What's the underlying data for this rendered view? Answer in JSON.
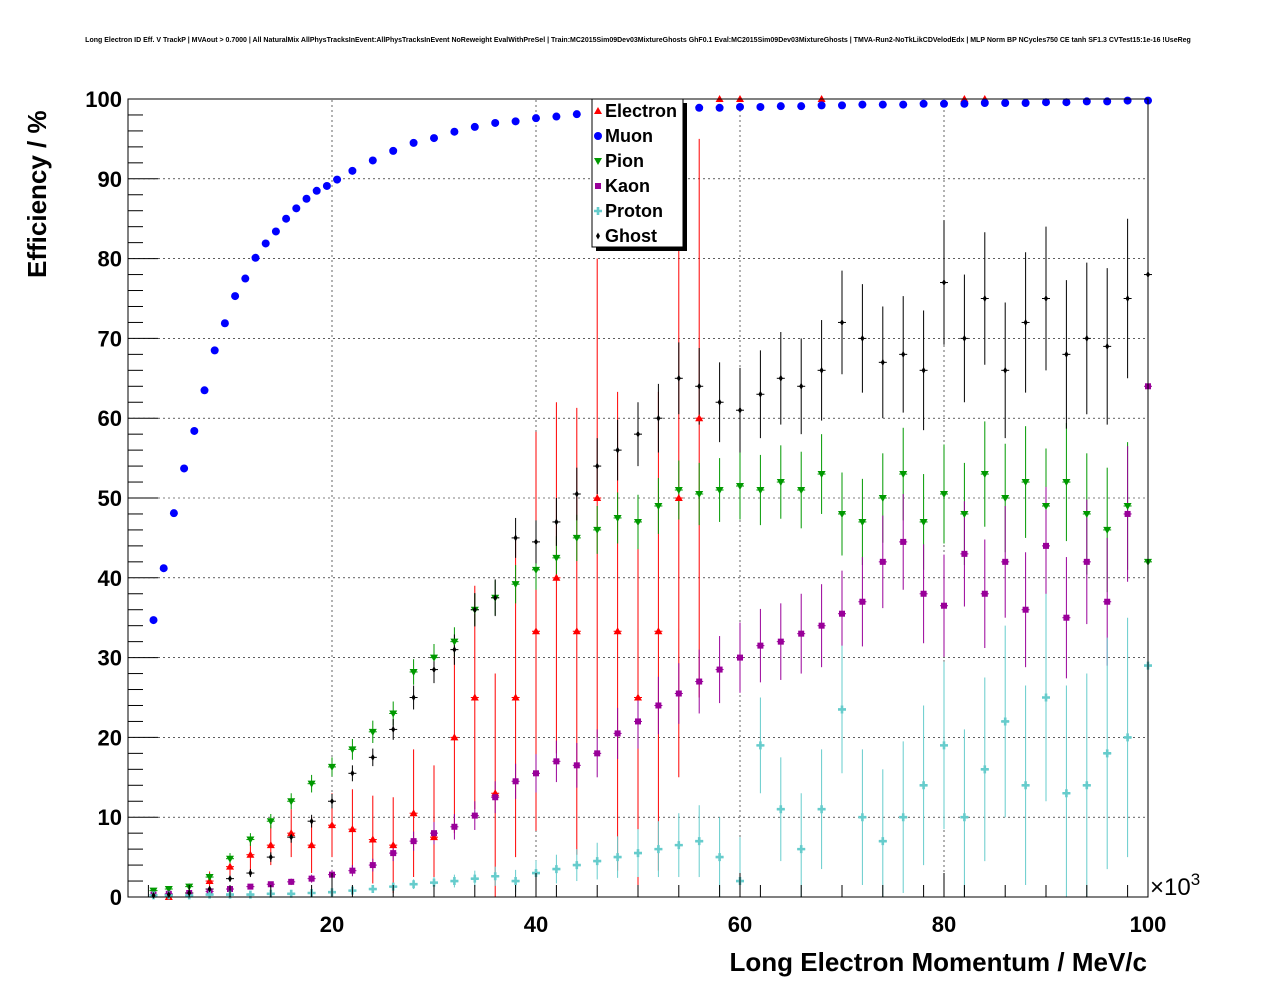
{
  "chart_data": {
    "type": "scatter",
    "title": "Long Electron ID Eff. V TrackP | MVAout > 0.7000 | All NaturalMix AllPhysTracksInEvent:AllPhysTracksInEvent NoReweight EvalWithPreSel | Train:MC2015Sim09Dev03MixtureGhosts GhF0.1 Eval:MC2015Sim09Dev03MixtureGhosts | TMVA-Run2-NoTkLikCDVelodEdx | MLP Norm BP NCycles750 CE tanh SF1.3 CVTest15:1e-16 !UseReg",
    "xlabel": "Long Electron Momentum / MeV/c",
    "ylabel": "Efficiency / %",
    "x_multiplier_label": "×10",
    "x_multiplier_exponent": "3",
    "xlim": [
      0,
      100
    ],
    "ylim": [
      0,
      100
    ],
    "x_ticks": [
      "20",
      "40",
      "60",
      "80",
      "100"
    ],
    "x_tick_values": [
      20,
      40,
      60,
      80,
      100
    ],
    "y_ticks": [
      "0",
      "10",
      "20",
      "30",
      "40",
      "50",
      "60",
      "70",
      "80",
      "90",
      "100"
    ],
    "y_tick_values": [
      0,
      10,
      20,
      30,
      40,
      50,
      60,
      70,
      80,
      90,
      100
    ],
    "grid": true,
    "legend_position": "top-center",
    "series": [
      {
        "name": "Electron",
        "color": "#ff0000",
        "marker": "triangle-up",
        "x": [
          4,
          6,
          8,
          10,
          12,
          14,
          16,
          18,
          20,
          22,
          24,
          26,
          28,
          30,
          32,
          34,
          36,
          38,
          40,
          42,
          44,
          46,
          48,
          50,
          52,
          54,
          56,
          58,
          60,
          68,
          82,
          84
        ],
        "y": [
          0,
          0.5,
          2.0,
          3.8,
          5.3,
          6.5,
          8.0,
          6.5,
          9.0,
          8.5,
          7.2,
          6.5,
          10.5,
          7.5,
          20.0,
          25.0,
          13.0,
          25.0,
          33.3,
          40.0,
          33.3,
          50.0,
          33.3,
          25.0,
          33.3,
          50.0,
          60.0,
          100.0,
          100.0,
          100.0,
          100.0,
          100.0
        ],
        "yerr": [
          0.5,
          0.8,
          1.2,
          1.5,
          2.0,
          2.5,
          3.0,
          3.5,
          4.0,
          5.0,
          5.5,
          6.0,
          8.0,
          9.0,
          12.0,
          14.0,
          15.0,
          20.0,
          25.0,
          22.0,
          28.0,
          30.0,
          30.0,
          25.0,
          30.0,
          35.0,
          35.0,
          0,
          0,
          0,
          0,
          0
        ]
      },
      {
        "name": "Muon",
        "color": "#0000ff",
        "marker": "circle",
        "x": [
          2.5,
          3.5,
          4.5,
          5.5,
          6.5,
          7.5,
          8.5,
          9.5,
          10.5,
          11.5,
          12.5,
          13.5,
          14.5,
          15.5,
          16.5,
          17.5,
          18.5,
          19.5,
          20.5,
          22,
          24,
          26,
          28,
          30,
          32,
          34,
          36,
          38,
          40,
          42,
          44,
          46,
          48,
          50,
          52,
          54,
          56,
          58,
          60,
          62,
          64,
          66,
          68,
          70,
          72,
          74,
          76,
          78,
          80,
          82,
          84,
          86,
          88,
          90,
          92,
          94,
          96,
          98,
          100
        ],
        "y": [
          34.7,
          41.2,
          48.1,
          53.7,
          58.4,
          63.5,
          68.5,
          71.9,
          75.3,
          77.5,
          80.1,
          81.9,
          83.4,
          85.0,
          86.3,
          87.5,
          88.5,
          89.1,
          89.9,
          91.0,
          92.3,
          93.5,
          94.5,
          95.1,
          95.9,
          96.5,
          97.0,
          97.2,
          97.6,
          97.8,
          98.1,
          98.3,
          98.4,
          98.5,
          98.7,
          98.8,
          98.9,
          98.9,
          99.0,
          99.0,
          99.1,
          99.1,
          99.2,
          99.2,
          99.3,
          99.3,
          99.3,
          99.4,
          99.4,
          99.4,
          99.5,
          99.5,
          99.5,
          99.6,
          99.6,
          99.7,
          99.7,
          99.8,
          99.8
        ],
        "yerr": []
      },
      {
        "name": "Pion",
        "color": "#009900",
        "marker": "triangle-down",
        "x": [
          2.5,
          4,
          6,
          8,
          10,
          12,
          14,
          16,
          18,
          20,
          22,
          24,
          26,
          28,
          30,
          32,
          34,
          36,
          38,
          40,
          42,
          44,
          46,
          48,
          50,
          52,
          54,
          56,
          58,
          60,
          62,
          64,
          66,
          68,
          70,
          72,
          74,
          76,
          78,
          80,
          82,
          84,
          86,
          88,
          90,
          92,
          94,
          96,
          98,
          100
        ],
        "y": [
          0.8,
          1.0,
          1.3,
          2.5,
          4.8,
          7.2,
          9.5,
          12.0,
          14.2,
          16.3,
          18.5,
          20.7,
          23.0,
          28.2,
          30.0,
          32.0,
          36.0,
          37.5,
          39.2,
          41.0,
          42.5,
          45.0,
          46.0,
          47.5,
          47.0,
          49.0,
          51.0,
          50.5,
          51.0,
          51.5,
          51.0,
          52.0,
          51.0,
          53.0,
          48.0,
          47.0,
          50.0,
          53.0,
          47.0,
          50.5,
          48.0,
          53.0,
          50.0,
          52.0,
          49.0,
          52.0,
          48.0,
          46.0,
          49.0,
          42.0
        ],
        "yerr": [
          0.3,
          0.3,
          0.4,
          0.5,
          0.7,
          0.8,
          0.9,
          1.0,
          1.1,
          1.2,
          1.3,
          1.4,
          1.5,
          1.6,
          1.7,
          1.8,
          2.0,
          2.2,
          2.4,
          2.5,
          2.7,
          2.9,
          3.0,
          3.2,
          3.4,
          3.5,
          3.7,
          3.9,
          4.0,
          4.2,
          4.4,
          4.6,
          4.8,
          5.0,
          5.2,
          5.4,
          5.6,
          5.8,
          6.0,
          6.2,
          6.4,
          6.6,
          6.8,
          7.0,
          7.2,
          7.4,
          7.6,
          7.8,
          8.0,
          8.5
        ]
      },
      {
        "name": "Kaon",
        "color": "#990099",
        "marker": "square",
        "x": [
          2.5,
          4,
          6,
          8,
          10,
          12,
          14,
          16,
          18,
          20,
          22,
          24,
          26,
          28,
          30,
          32,
          34,
          36,
          38,
          40,
          42,
          44,
          46,
          48,
          50,
          52,
          54,
          56,
          58,
          60,
          62,
          64,
          66,
          68,
          70,
          72,
          74,
          76,
          78,
          80,
          82,
          84,
          86,
          88,
          90,
          92,
          94,
          96,
          98,
          100
        ],
        "y": [
          0.3,
          0.4,
          0.5,
          0.7,
          1.0,
          1.3,
          1.6,
          1.9,
          2.3,
          2.8,
          3.3,
          4.0,
          5.5,
          7.0,
          8.0,
          8.8,
          10.2,
          12.5,
          14.5,
          15.5,
          17.0,
          16.5,
          18.0,
          20.5,
          22.0,
          24.0,
          25.5,
          27.0,
          28.5,
          30.0,
          31.5,
          32.0,
          33.0,
          34.0,
          35.5,
          37.0,
          42.0,
          44.5,
          38.0,
          36.5,
          43.0,
          38.0,
          42.0,
          36.0,
          44.0,
          35.0,
          42.0,
          37.0,
          48.0,
          64.0
        ],
        "yerr": [
          0.1,
          0.1,
          0.1,
          0.2,
          0.2,
          0.3,
          0.3,
          0.4,
          0.5,
          0.6,
          0.7,
          0.8,
          1.0,
          1.2,
          1.4,
          1.6,
          1.8,
          2.0,
          2.2,
          2.4,
          2.6,
          2.8,
          3.0,
          3.2,
          3.4,
          3.6,
          3.8,
          4.0,
          4.2,
          4.4,
          4.6,
          4.8,
          5.0,
          5.2,
          5.4,
          5.6,
          5.8,
          6.0,
          6.2,
          6.4,
          6.6,
          6.8,
          7.0,
          7.2,
          7.4,
          7.6,
          7.8,
          8.0,
          8.5,
          9.0
        ]
      },
      {
        "name": "Proton",
        "color": "#66cccc",
        "marker": "cross",
        "x": [
          2.5,
          4,
          6,
          8,
          10,
          12,
          14,
          16,
          18,
          20,
          22,
          24,
          26,
          28,
          30,
          32,
          34,
          36,
          38,
          40,
          42,
          44,
          46,
          48,
          50,
          52,
          54,
          56,
          58,
          60,
          62,
          64,
          66,
          68,
          70,
          72,
          74,
          76,
          78,
          80,
          82,
          84,
          86,
          88,
          90,
          92,
          94,
          96,
          98,
          100
        ],
        "y": [
          0.2,
          0.2,
          0.2,
          0.3,
          0.3,
          0.3,
          0.4,
          0.4,
          0.5,
          0.6,
          0.8,
          1.0,
          1.3,
          1.6,
          1.8,
          2.0,
          2.3,
          2.6,
          2.0,
          3.0,
          3.5,
          4.0,
          4.5,
          5.0,
          5.5,
          6.0,
          6.5,
          7.0,
          5.0,
          2.0,
          19.0,
          11.0,
          6.0,
          11.0,
          23.5,
          10.0,
          7.0,
          10.0,
          14.0,
          19.0,
          10.0,
          16.0,
          22.0,
          14.0,
          25.0,
          13.0,
          14.0,
          18.0,
          20.0,
          29.0
        ],
        "yerr": [
          0.1,
          0.1,
          0.1,
          0.1,
          0.1,
          0.1,
          0.2,
          0.2,
          0.2,
          0.3,
          0.3,
          0.4,
          0.5,
          0.6,
          0.7,
          0.8,
          1.0,
          1.2,
          1.4,
          1.6,
          1.8,
          2.0,
          2.3,
          2.6,
          3.0,
          3.5,
          4.0,
          4.5,
          5.0,
          5.5,
          6.0,
          6.5,
          7.0,
          7.5,
          8.0,
          8.5,
          9.0,
          9.5,
          10.0,
          10.5,
          11.0,
          11.5,
          12.0,
          12.5,
          13.0,
          13.5,
          14.0,
          14.5,
          15.0,
          16.0
        ]
      },
      {
        "name": "Ghost",
        "color": "#000000",
        "marker": "diamond",
        "x": [
          2.5,
          4,
          6,
          8,
          10,
          12,
          14,
          16,
          18,
          20,
          22,
          24,
          26,
          28,
          30,
          32,
          34,
          36,
          38,
          40,
          42,
          44,
          46,
          48,
          50,
          52,
          54,
          56,
          58,
          60,
          62,
          64,
          66,
          68,
          70,
          72,
          74,
          76,
          78,
          80,
          82,
          84,
          86,
          88,
          90,
          92,
          94,
          96,
          98,
          100
        ],
        "y": [
          0.2,
          0.3,
          0.5,
          1.0,
          2.3,
          3.0,
          5.0,
          7.5,
          9.5,
          12.0,
          15.5,
          17.5,
          21.0,
          25.0,
          28.5,
          31.0,
          36.0,
          37.5,
          45.0,
          44.5,
          47.0,
          50.5,
          54.0,
          56.0,
          58.0,
          60.0,
          65.0,
          64.0,
          62.0,
          61.0,
          63.0,
          65.0,
          64.0,
          66.0,
          72.0,
          70.0,
          67.0,
          68.0,
          66.0,
          77.0,
          70.0,
          75.0,
          66.0,
          72.0,
          75.0,
          68.0,
          70.0,
          69.0,
          75.0,
          78.0
        ],
        "yerr": [
          0.1,
          0.1,
          0.2,
          0.3,
          0.4,
          0.5,
          0.6,
          0.7,
          0.8,
          0.9,
          1.0,
          1.1,
          1.3,
          1.5,
          1.7,
          1.9,
          2.1,
          2.3,
          2.5,
          2.7,
          3.0,
          3.3,
          3.5,
          3.8,
          4.0,
          4.3,
          4.5,
          4.8,
          5.0,
          5.3,
          5.5,
          5.8,
          6.0,
          6.3,
          6.5,
          6.8,
          7.0,
          7.3,
          7.5,
          7.8,
          8.0,
          8.3,
          8.5,
          8.8,
          9.0,
          9.3,
          9.5,
          9.8,
          10.0,
          10.5
        ]
      }
    ]
  }
}
